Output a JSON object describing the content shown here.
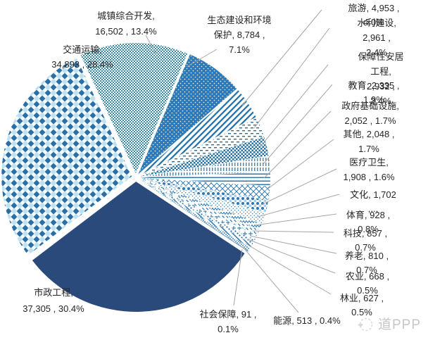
{
  "watermark": {
    "text": "道PPP"
  },
  "colors": {
    "navy": "#2b4a7c",
    "blue": "#2e79b8",
    "teal": "#3a8ba1",
    "pattern_stroke": "#1f6fa8",
    "diamond_blue": "#2e6da4",
    "diamond_pale": "#bfe0ee",
    "leader_line": "#a6a6a6",
    "label_text": "#262626",
    "watermark_gray": "#c6c6c6"
  },
  "chart_data": {
    "type": "pie",
    "title": "",
    "legend": "none",
    "start_angle_deg": -25,
    "series": [
      {
        "id": "urban",
        "name": "城镇综合开发",
        "value": 16502,
        "pct": "13.4%",
        "label": "城镇综合开发,\n16,502 , 13.4%",
        "pattern": "checker-teal"
      },
      {
        "id": "eco",
        "name": "生态建设和环境保护",
        "value": 8784,
        "pct": "7.1%",
        "label": "生态建设和环境\n保护, 8,784 ,\n7.1%",
        "pattern": "dots-on-blue"
      },
      {
        "id": "tourism",
        "name": "旅游",
        "value": 4953,
        "pct": "4.0%",
        "label": "旅游, 4,953 , 4.0%",
        "pattern": "diag-stripes"
      },
      {
        "id": "water",
        "name": "水利建设",
        "value": 2961,
        "pct": "2.4%",
        "label": "水利建设, 2,961 ,\n2.4%",
        "pattern": "h-dashes"
      },
      {
        "id": "housing",
        "name": "保障性安居工程",
        "value": 2932,
        "pct": "2.4%",
        "label": "保障性安居工程,\n2,932 , 2.4%",
        "pattern": "dense-checker"
      },
      {
        "id": "education",
        "name": "教育",
        "value": 2335,
        "pct": "1.9%",
        "label": "教育, 2,335 , 1.9%",
        "pattern": "v-lines"
      },
      {
        "id": "govinfra",
        "name": "政府基础设施",
        "value": 2052,
        "pct": "1.7%",
        "label": "政府基础设施,\n2,052 , 1.7%",
        "pattern": "h-lines"
      },
      {
        "id": "other",
        "name": "其他",
        "value": 2048,
        "pct": "1.7%",
        "label": "其他, 2,048 ,\n1.7%",
        "pattern": "crosshatch"
      },
      {
        "id": "medical",
        "name": "医疗卫生",
        "value": 1908,
        "pct": "1.6%",
        "label": "医疗卫生,\n1,908 , 1.6%",
        "pattern": "bubbles"
      },
      {
        "id": "culture",
        "name": "文化",
        "value": 1702,
        "pct": "1.4%",
        "label": "文化, 1,702 ,...",
        "pattern": "fine-dots"
      },
      {
        "id": "sports",
        "name": "体育",
        "value": 928,
        "pct": "0.8%",
        "label": "体育, 928 , 0.8%",
        "pattern": "zigzag"
      },
      {
        "id": "tech",
        "name": "科技",
        "value": 857,
        "pct": "0.7%",
        "label": "科技, 857 , 0.7%",
        "pattern": "diag-dashes"
      },
      {
        "id": "eldercare",
        "name": "养老",
        "value": 810,
        "pct": "0.7%",
        "label": "养老, 810 , 0.7%",
        "pattern": "plus-cross"
      },
      {
        "id": "agriculture",
        "name": "农业",
        "value": 668,
        "pct": "0.5%",
        "label": "农业, 668 , 0.5%",
        "pattern": "med-dots"
      },
      {
        "id": "forestry",
        "name": "林业",
        "value": 627,
        "pct": "0.5%",
        "label": "林业, 627 , 0.5%",
        "pattern": "diag-stripes2"
      },
      {
        "id": "energy",
        "name": "能源",
        "value": 513,
        "pct": "0.4%",
        "label": "能源, 513 , 0.4%",
        "pattern": "dense-dots"
      },
      {
        "id": "social",
        "name": "社会保障",
        "value": 91,
        "pct": "0.1%",
        "label": "社会保障, 91 ,\n0.1%",
        "pattern": "solid-blue"
      },
      {
        "id": "municipal",
        "name": "市政工程",
        "value": 37305,
        "pct": "30.4%",
        "label": "市政工程,\n37,305 , 30.4%",
        "pattern": "solid-navy"
      },
      {
        "id": "transport",
        "name": "交通运输",
        "value": 34893,
        "pct": "28.4%",
        "label": "交通运输,\n34,893 , 28.4%",
        "pattern": "diamond-checker"
      }
    ]
  }
}
